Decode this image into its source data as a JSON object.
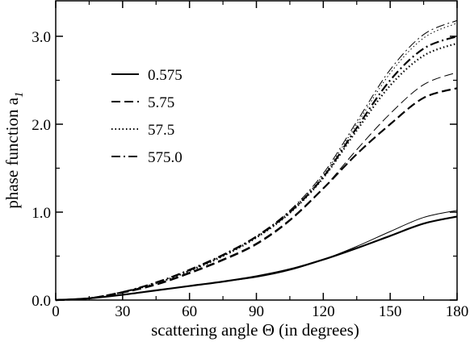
{
  "chart_data": {
    "type": "line",
    "xlabel": "scattering angle Θ (in degrees)",
    "ylabel_main": "phase function a",
    "ylabel_sub": "1",
    "xlim": [
      0,
      180
    ],
    "ylim": [
      0,
      3.0
    ],
    "xticks": [
      "0",
      "30",
      "60",
      "90",
      "120",
      "150",
      "180"
    ],
    "yticks": [
      "0.0",
      "1.0",
      "2.0",
      "3.0"
    ],
    "legend_placement": "upper-left",
    "x": [
      0,
      15,
      30,
      45,
      60,
      75,
      90,
      105,
      120,
      135,
      150,
      165,
      180
    ],
    "series": [
      {
        "name": "0.575",
        "dash": "solid",
        "values": [
          0.0,
          0.02,
          0.06,
          0.11,
          0.16,
          0.21,
          0.27,
          0.35,
          0.46,
          0.59,
          0.73,
          0.87,
          0.95
        ],
        "values_thin": [
          0.0,
          0.02,
          0.06,
          0.11,
          0.16,
          0.21,
          0.26,
          0.34,
          0.46,
          0.61,
          0.78,
          0.94,
          1.02
        ]
      },
      {
        "name": "5.75",
        "dash": "dashed",
        "values": [
          0.0,
          0.02,
          0.09,
          0.18,
          0.31,
          0.46,
          0.64,
          0.91,
          1.27,
          1.66,
          2.0,
          2.3,
          2.41
        ],
        "values_thin": [
          0.0,
          0.02,
          0.08,
          0.17,
          0.3,
          0.45,
          0.63,
          0.9,
          1.27,
          1.71,
          2.12,
          2.45,
          2.59
        ]
      },
      {
        "name": "57.5",
        "dash": "dotted",
        "values": [
          0.0,
          0.02,
          0.09,
          0.19,
          0.33,
          0.5,
          0.71,
          0.99,
          1.39,
          1.93,
          2.44,
          2.78,
          2.92
        ],
        "values_thin": [
          0.0,
          0.02,
          0.09,
          0.19,
          0.34,
          0.51,
          0.72,
          1.01,
          1.42,
          2.0,
          2.58,
          2.98,
          3.15
        ]
      },
      {
        "name": "575.0",
        "dash": "dashdot",
        "values": [
          0.0,
          0.02,
          0.09,
          0.2,
          0.34,
          0.51,
          0.72,
          1.0,
          1.4,
          1.96,
          2.5,
          2.86,
          3.0
        ],
        "values_thin": [
          0.0,
          0.02,
          0.09,
          0.2,
          0.35,
          0.52,
          0.73,
          1.02,
          1.44,
          2.03,
          2.62,
          3.02,
          3.18
        ]
      }
    ]
  }
}
